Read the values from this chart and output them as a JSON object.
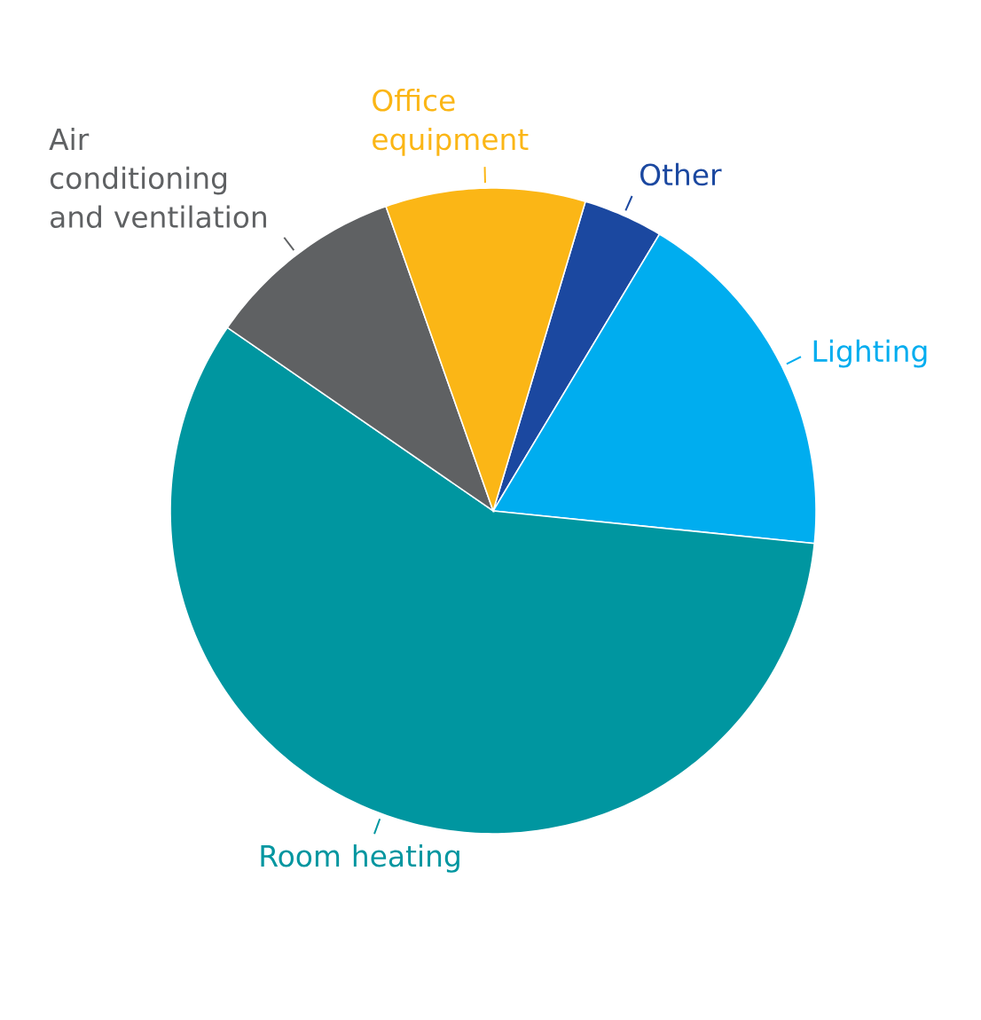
{
  "chart_data": {
    "type": "pie",
    "categories": [
      "Other",
      "Lighting",
      "Room heating",
      "Air conditioning and ventilation",
      "Office equipment"
    ],
    "values": [
      4,
      18,
      58,
      10,
      10
    ],
    "colors": [
      "#1b48a0",
      "#00adef",
      "#0096a0",
      "#5f6163",
      "#fbb616"
    ]
  }
}
